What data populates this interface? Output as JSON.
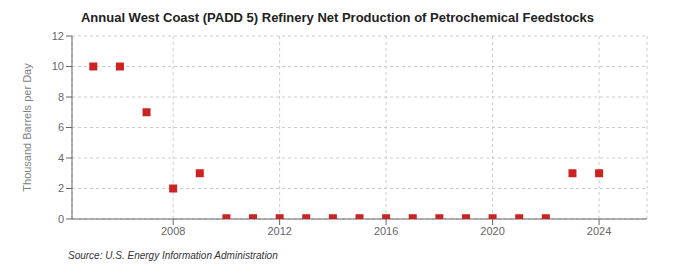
{
  "chart_data": {
    "type": "scatter",
    "title": "Annual West Coast (PADD 5) Refinery Net Production of Petrochemical Feedstocks",
    "ylabel": "Thousand Barrels per Day",
    "annotations": [
      "Source: U.S. Energy Information Administration"
    ],
    "x": [
      2005,
      2006,
      2007,
      2008,
      2009,
      2010,
      2011,
      2012,
      2013,
      2014,
      2015,
      2016,
      2017,
      2018,
      2019,
      2020,
      2021,
      2022,
      2023,
      2024
    ],
    "values": [
      10,
      10,
      7,
      2,
      3,
      0.05,
      0.05,
      0.05,
      0.05,
      0.05,
      0.05,
      0.05,
      0.05,
      0.05,
      0.05,
      0.05,
      0.05,
      0.05,
      3,
      3
    ],
    "color": "#cc2222",
    "marker": "square",
    "xlim": [
      2004.2,
      2025.8
    ],
    "ylim": [
      0,
      12
    ],
    "xticks": [
      2008,
      2012,
      2016,
      2020,
      2024
    ],
    "yticks": [
      0,
      2,
      4,
      6,
      8,
      10,
      12
    ],
    "grid": true
  }
}
